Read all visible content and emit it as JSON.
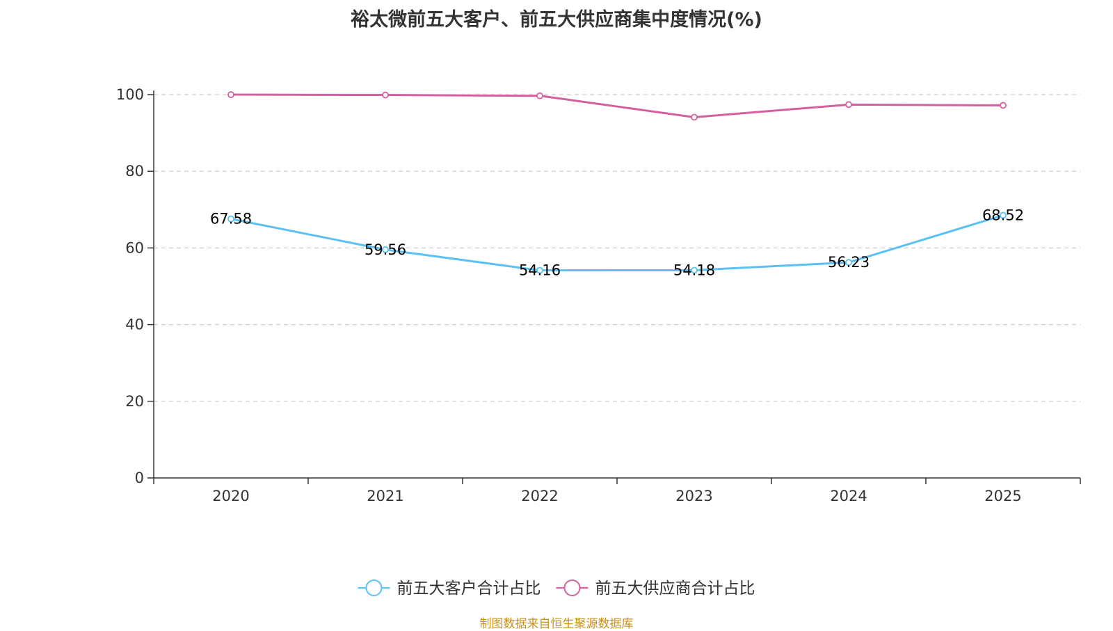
{
  "chart_data": {
    "type": "line",
    "title": "裕太微前五大客户、前五大供应商集中度情况(%)",
    "categories": [
      "2020",
      "2021",
      "2022",
      "2023",
      "2024",
      "2025"
    ],
    "ylim": [
      0,
      100
    ],
    "yticks": [
      0,
      20,
      40,
      60,
      80,
      100
    ],
    "grid": true,
    "legend_position": "bottom",
    "series": [
      {
        "name": "前五大客户合计占比",
        "color": "#5bc0f2",
        "values": [
          67.58,
          59.56,
          54.16,
          54.18,
          56.23,
          68.52
        ],
        "labels": [
          "67.58",
          "59.56",
          "54.16",
          "54.18",
          "56.23",
          "68.52"
        ],
        "show_labels": true
      },
      {
        "name": "前五大供应商合计占比",
        "color": "#d4619f",
        "values": [
          99.99,
          99.9,
          99.7,
          94.1,
          97.4,
          97.2
        ],
        "show_labels": false
      }
    ]
  },
  "source_note": "制图数据来自恒生聚源数据库",
  "colors": {
    "axis": "#333333",
    "grid": "#cccccc",
    "source": "#c8911e"
  }
}
